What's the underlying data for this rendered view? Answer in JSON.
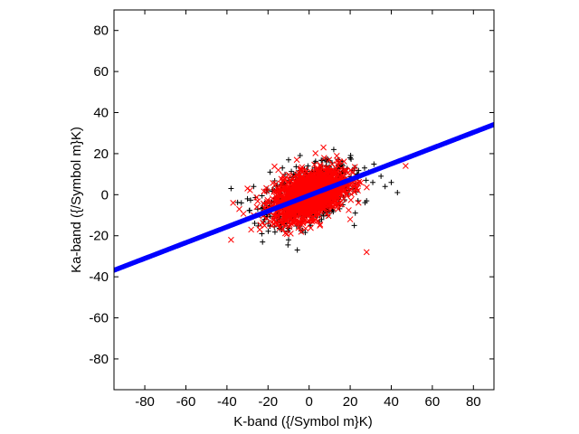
{
  "chart_data": {
    "type": "scatter",
    "title": "",
    "xlabel": "K-band ({/Symbol m}K)",
    "ylabel": "Ka-band ({/Symbol m}K)",
    "xlim": [
      -95,
      90
    ],
    "ylim": [
      -95,
      90
    ],
    "xticks": [
      -80,
      -60,
      -40,
      -20,
      0,
      20,
      40,
      60,
      80
    ],
    "yticks": [
      -80,
      -60,
      -40,
      -20,
      0,
      20,
      40,
      60,
      80
    ],
    "tick_labels_x": [
      "-80",
      "-60",
      "-40",
      "-20",
      "0",
      "20",
      "40",
      "60",
      "80"
    ],
    "tick_labels_y": [
      "-80",
      "-60",
      "-40",
      "-20",
      "0",
      "20",
      "40",
      "60",
      "80"
    ],
    "grid": false,
    "legend": "none",
    "series": [
      {
        "marker": "plus",
        "color": "#000000",
        "cluster": {
          "center": [
            0,
            0
          ],
          "sd": [
            10,
            7
          ],
          "corr": 0.45,
          "n": 900
        },
        "points": [
          [
            -38,
            3
          ],
          [
            -33,
            -4
          ],
          [
            -27,
            4
          ],
          [
            -25,
            -7
          ],
          [
            -23,
            -19
          ],
          [
            -20,
            -14
          ],
          [
            -19,
            11
          ],
          [
            -13,
            13
          ],
          [
            -10,
            17
          ],
          [
            12,
            22
          ],
          [
            20,
            18
          ],
          [
            27,
            13
          ],
          [
            29,
            11
          ],
          [
            31,
            6
          ],
          [
            35,
            9
          ],
          [
            37,
            4
          ],
          [
            40,
            6
          ],
          [
            43,
            1
          ],
          [
            28,
            -3
          ],
          [
            22,
            -15
          ],
          [
            -24,
            -10
          ],
          [
            -10,
            -22
          ],
          [
            5,
            -13
          ],
          [
            -30,
            -2
          ]
        ]
      },
      {
        "marker": "cross",
        "color": "#ff0000",
        "cluster": {
          "center": [
            0,
            0
          ],
          "sd": [
            8.5,
            6
          ],
          "corr": 0.45,
          "n": 1800
        },
        "points": [
          [
            -38,
            -22
          ],
          [
            -37,
            -4
          ],
          [
            -34,
            -7
          ],
          [
            -30,
            3
          ],
          [
            -27,
            -10
          ],
          [
            7,
            23
          ],
          [
            47,
            14
          ],
          [
            28,
            -28
          ],
          [
            -6,
            17
          ],
          [
            -15,
            12
          ],
          [
            15,
            16
          ],
          [
            20,
            -12
          ]
        ]
      },
      {
        "marker": "line",
        "color": "#0000ff",
        "from": [
          -95,
          -36.8
        ],
        "to": [
          90,
          34.2
        ]
      }
    ]
  }
}
